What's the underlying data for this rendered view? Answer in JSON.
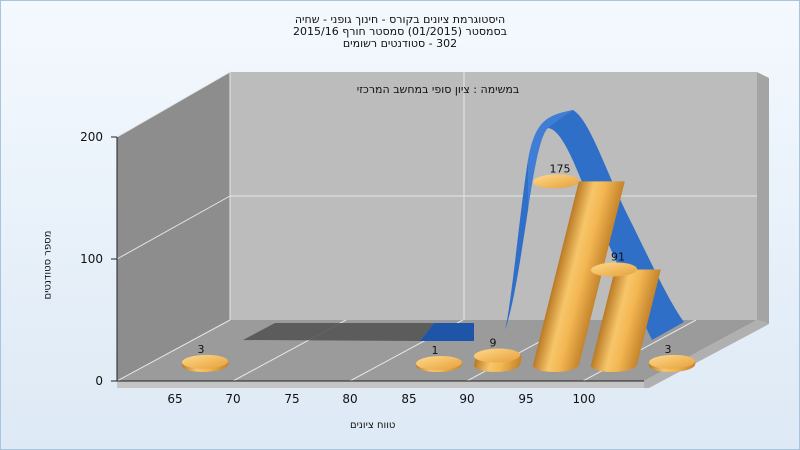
{
  "chart_data": {
    "type": "bar",
    "title_lines": [
      "היסטוגרמת ציונים בקורס - חינוך גופני - שחיה",
      "בסמסטר  (01/2015)  סמסטר חורף  2015/16",
      "302 - סטודנטים רשומים"
    ],
    "annotation": "במשימה : ציון סופי במחשב המרכזי",
    "xlabel": "טווח ציונים",
    "ylabel": "מספר סטודנטים",
    "x_ticks": [
      "65",
      "70",
      "75",
      "80",
      "85",
      "90",
      "95",
      "100"
    ],
    "y_ticks": [
      "0",
      "100",
      "200"
    ],
    "ylim": [
      0,
      200
    ],
    "bars": [
      {
        "category": "65",
        "value": 3,
        "label": "3"
      },
      {
        "category": "85",
        "value": 1,
        "label": "1"
      },
      {
        "category": "90",
        "value": 9,
        "label": "9"
      },
      {
        "category": "95",
        "value": 175,
        "label": "175"
      },
      {
        "category": "100",
        "value": 91,
        "label": "91"
      },
      {
        "category": "105",
        "value": 3,
        "label": "3"
      }
    ],
    "bar_color": "#f0b24a",
    "curve_color": "#2f6fc8",
    "wall_color": "#bdbdbd",
    "side_wall_color": "#8c8c8c",
    "floor_color": "#9a9a9a"
  }
}
